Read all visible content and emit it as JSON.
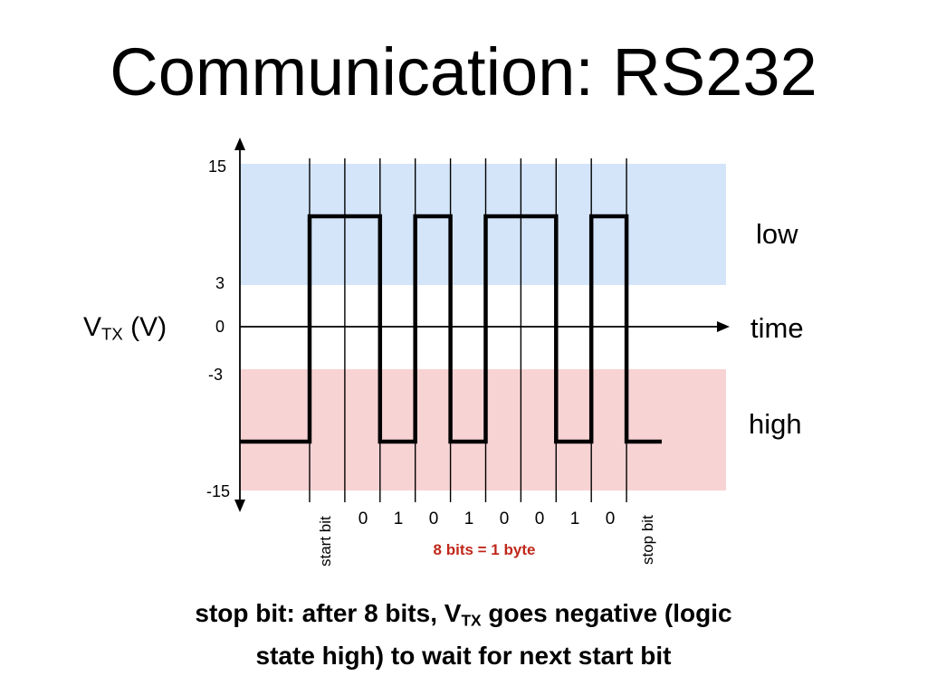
{
  "title": "Communication: RS232",
  "y_axis": {
    "label_main": "V",
    "label_sub": "TX",
    "label_unit": " (V)",
    "ticks": [
      "15",
      "3",
      "0",
      "-3",
      "-15"
    ]
  },
  "regions": {
    "low_label": "low",
    "high_label": "high",
    "low_color": "#d4e5f9",
    "high_color": "#f8d3d4"
  },
  "x_axis": {
    "label": "time"
  },
  "bits": {
    "start_label": "start bit",
    "stop_label": "stop bit",
    "data_bits": [
      "0",
      "1",
      "0",
      "1",
      "0",
      "0",
      "1",
      "0"
    ],
    "byte_label": "8 bits = 1 byte",
    "byte_label_color": "#c0281b"
  },
  "signal": {
    "unit": "V",
    "high_level": 10,
    "low_level": -10,
    "levels": [
      -10,
      10,
      10,
      -10,
      10,
      -10,
      10,
      10,
      -10,
      10,
      -10
    ]
  },
  "caption": {
    "part1": "stop bit: after 8 bits, V",
    "sub": "TX",
    "part2": " goes negative (logic",
    "line2": "state high) to wait for next start bit"
  }
}
